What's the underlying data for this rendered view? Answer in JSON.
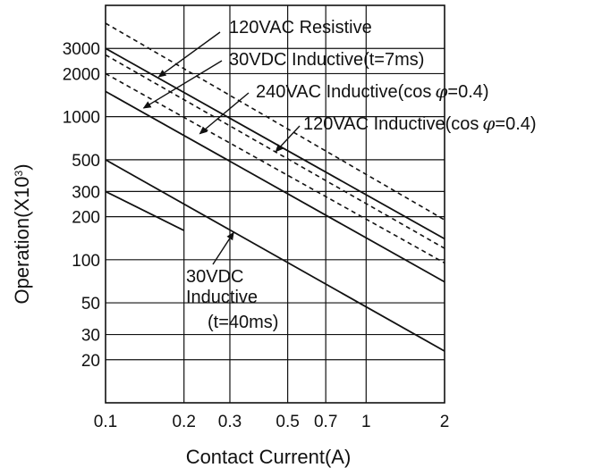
{
  "chart_data": {
    "type": "line",
    "title": "",
    "xlabel": "Contact Current(A)",
    "ylabel": "Operation(X10",
    "ylabel_sup": "3",
    "ylabel_close": ")",
    "x_scale": "log",
    "y_scale": "log",
    "xlim": [
      0.1,
      2
    ],
    "ylim": [
      10,
      6000
    ],
    "x_ticks": [
      {
        "value": 0.1,
        "label": "0.1"
      },
      {
        "value": 0.2,
        "label": "0.2"
      },
      {
        "value": 0.3,
        "label": "0.3"
      },
      {
        "value": 0.5,
        "label": "0.5"
      },
      {
        "value": 0.7,
        "label": "0.7"
      },
      {
        "value": 1,
        "label": "1"
      },
      {
        "value": 2,
        "label": "2"
      }
    ],
    "y_ticks": [
      {
        "value": 20,
        "label": "20"
      },
      {
        "value": 30,
        "label": "30"
      },
      {
        "value": 50,
        "label": "50"
      },
      {
        "value": 100,
        "label": "100"
      },
      {
        "value": 200,
        "label": "200"
      },
      {
        "value": 300,
        "label": "300"
      },
      {
        "value": 500,
        "label": "500"
      },
      {
        "value": 1000,
        "label": "1000"
      },
      {
        "value": 2000,
        "label": "2000"
      },
      {
        "value": 3000,
        "label": "3000"
      }
    ],
    "grid": true,
    "series": [
      {
        "name": "120VAC Resistive",
        "style": "dashed",
        "points": [
          [
            0.1,
            4500
          ],
          [
            2,
            190
          ]
        ]
      },
      {
        "name": "30VDC Inductive(t=7ms)",
        "style": "solid",
        "points": [
          [
            0.1,
            3000
          ],
          [
            2,
            140
          ]
        ]
      },
      {
        "name": "240VAC Inductive(cos φ=0.4)",
        "style": "dashed",
        "points": [
          [
            0.1,
            2000
          ],
          [
            2,
            95
          ]
        ]
      },
      {
        "name": "120VAC Inductive(cos φ=0.4)",
        "style": "dashed",
        "points": [
          [
            0.1,
            2700
          ],
          [
            2,
            120
          ]
        ]
      },
      {
        "name": "",
        "style": "solid",
        "points": [
          [
            0.1,
            1500
          ],
          [
            2,
            70
          ]
        ]
      },
      {
        "name": "30VDC Inductive (t=40ms)",
        "style": "solid",
        "points": [
          [
            0.1,
            500
          ],
          [
            2,
            23
          ]
        ]
      },
      {
        "name": "",
        "style": "solid",
        "points": [
          [
            0.1,
            300
          ],
          [
            0.2,
            160
          ]
        ]
      }
    ],
    "annotations": [
      {
        "lines": [
          "120VAC Resistive"
        ],
        "target_series": 0
      },
      {
        "lines": [
          "30VDC Inductive(t=7ms)"
        ],
        "target_series": 1
      },
      {
        "lines": [
          "240VAC Inductive(cos",
          "φ",
          "=0.4)"
        ],
        "target_series": 2
      },
      {
        "lines": [
          "120VAC Inductive(cos",
          "φ",
          "=0.4)"
        ],
        "target_series": 3
      },
      {
        "lines": [
          "30VDC",
          "Inductive",
          "(t=40ms)"
        ],
        "target_series": 5
      }
    ]
  }
}
